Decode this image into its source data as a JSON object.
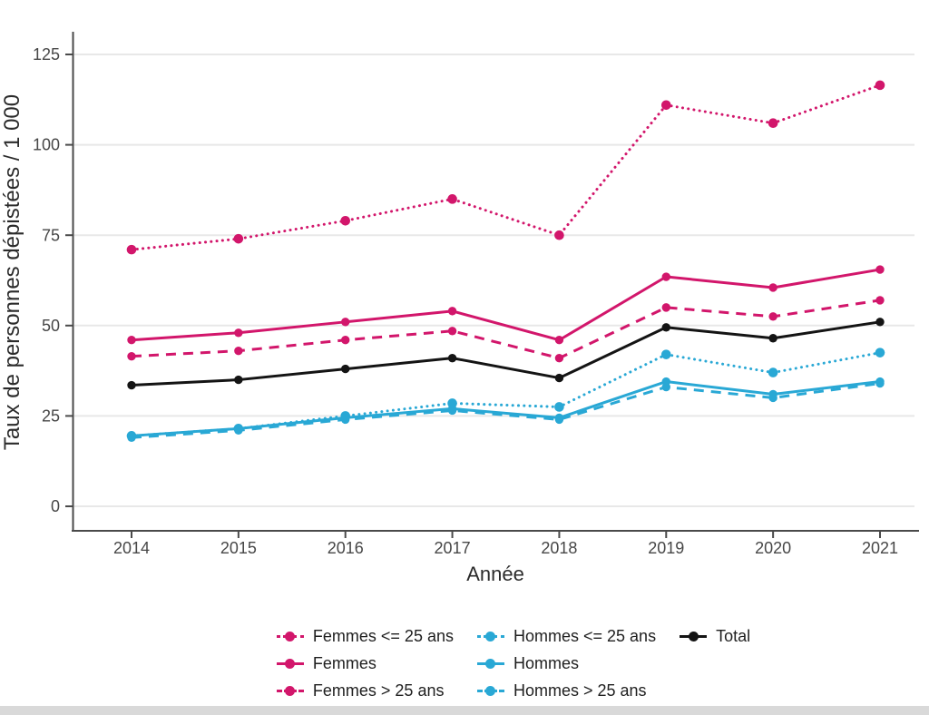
{
  "chart_data": {
    "type": "line",
    "title": "",
    "xlabel": "Année",
    "ylabel": "Taux de personnes dépistées / 1 000",
    "x": [
      2014,
      2015,
      2016,
      2017,
      2018,
      2019,
      2020,
      2021
    ],
    "ylim": [
      0,
      132
    ],
    "yticks": [
      0,
      25,
      50,
      75,
      100,
      125
    ],
    "grid": "horizontal-only",
    "legend_position": "bottom-center",
    "series": [
      {
        "name": "Femmes <= 25 ans",
        "color": "#D2166B",
        "style": "dotted",
        "values": [
          71,
          74,
          79,
          85,
          75,
          111,
          106,
          116.5
        ]
      },
      {
        "name": "Femmes",
        "color": "#D2166B",
        "style": "solid",
        "values": [
          46,
          48,
          51,
          54,
          46,
          63.5,
          60.5,
          65.5
        ]
      },
      {
        "name": "Femmes > 25 ans",
        "color": "#D2166B",
        "style": "dashed",
        "values": [
          41.5,
          43,
          46,
          48.5,
          41,
          55,
          52.5,
          57
        ]
      },
      {
        "name": "Hommes <= 25 ans",
        "color": "#29A8D5",
        "style": "dotted",
        "values": [
          19.5,
          21.5,
          25,
          28.5,
          27.5,
          42,
          37,
          42.5
        ]
      },
      {
        "name": "Hommes",
        "color": "#29A8D5",
        "style": "solid",
        "values": [
          19.5,
          21.5,
          24.5,
          27,
          24.5,
          34.5,
          31,
          34.5
        ]
      },
      {
        "name": "Hommes > 25 ans",
        "color": "#29A8D5",
        "style": "dashed",
        "values": [
          19,
          21,
          24,
          26.5,
          24,
          33,
          30,
          34
        ]
      },
      {
        "name": "Total",
        "color": "#141414",
        "style": "solid",
        "values": [
          33.5,
          35,
          38,
          41,
          35.5,
          49.5,
          46.5,
          51
        ]
      }
    ],
    "draw_order": [
      0,
      2,
      1,
      3,
      5,
      4,
      6
    ]
  },
  "colors": {
    "pink": "#D2166B",
    "blue": "#29A8D5",
    "black": "#141414",
    "gridline": "#E8E8E8",
    "axis": "#4A4A4A",
    "tick_text": "#474747",
    "axis_title_text": "#2B2B2B",
    "bottom_strip": "#D9D9D9",
    "background": "#FFFFFF"
  }
}
